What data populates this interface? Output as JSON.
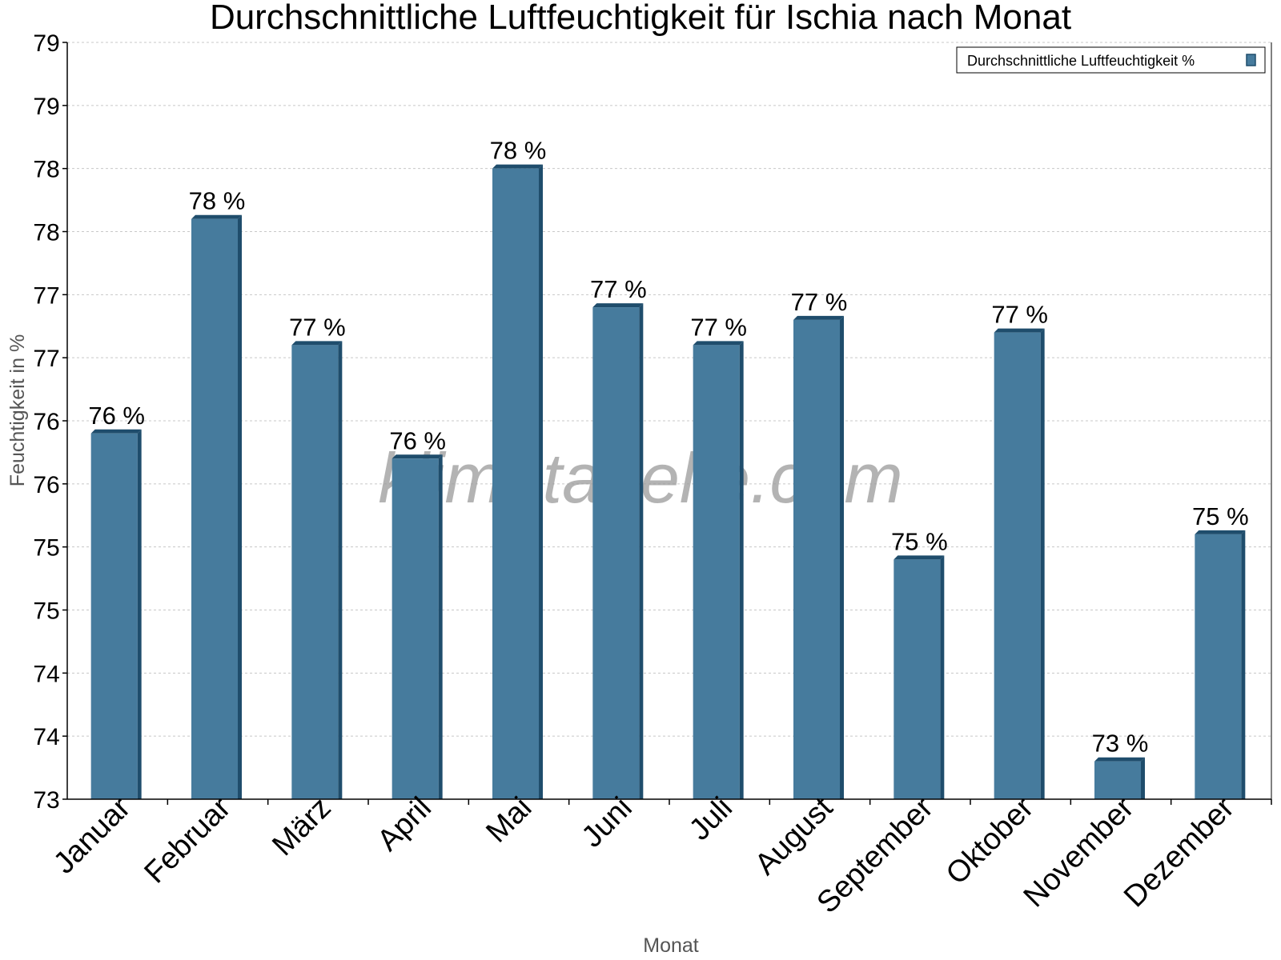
{
  "chart_data": {
    "type": "bar",
    "title": "Durchschnittliche Luftfeuchtigkeit für Ischia nach Monat",
    "xlabel": "Monat",
    "ylabel": "Feuchtigkeit in %",
    "categories": [
      "Januar",
      "Februar",
      "März",
      "April",
      "Mai",
      "Juni",
      "Juli",
      "August",
      "September",
      "Oktober",
      "November",
      "Dezember"
    ],
    "series": [
      {
        "name": "Durchschnittliche Luftfeuchtigkeit %",
        "values": [
          75.9,
          77.6,
          76.6,
          75.7,
          78.0,
          76.9,
          76.6,
          76.8,
          74.9,
          76.7,
          73.3,
          75.1
        ],
        "data_labels": [
          "76 %",
          "78 %",
          "77 %",
          "76 %",
          "78 %",
          "77 %",
          "77 %",
          "77 %",
          "75 %",
          "77 %",
          "73 %",
          "75 %"
        ]
      }
    ],
    "ylim": [
      73,
      79
    ],
    "yticks": [
      73,
      73.5,
      74,
      74.5,
      75,
      75.5,
      76,
      76.5,
      77,
      77.5,
      78,
      78.5,
      79
    ],
    "ytick_labels": [
      "73",
      "74",
      "74",
      "75",
      "75",
      "76",
      "76",
      "77",
      "77",
      "78",
      "78",
      "79",
      "79"
    ],
    "grid": true,
    "legend": "top-right",
    "colors": {
      "bar": "#467b9d",
      "bar_shade": "#1f4d6c",
      "grid": "#c8c8c8"
    }
  },
  "watermark": "klimatabelle.com"
}
